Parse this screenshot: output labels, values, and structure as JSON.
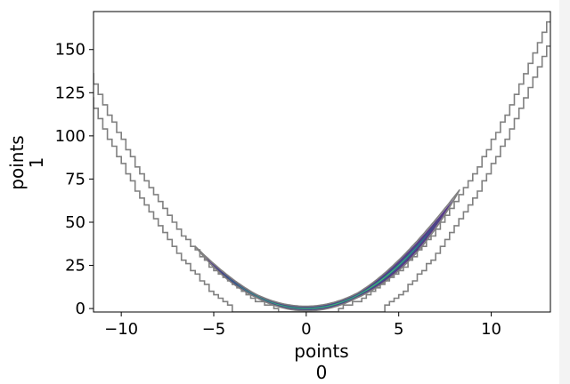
{
  "chart_data": {
    "type": "contour",
    "title": "",
    "xlabel_lines": [
      "points",
      "0"
    ],
    "ylabel_lines": [
      "points",
      "1"
    ],
    "xlim": [
      -11.5,
      13.2
    ],
    "ylim": [
      -2,
      172
    ],
    "xticks": [
      -10,
      -5,
      0,
      5,
      10
    ],
    "xtick_labels": [
      "−10",
      "−5",
      "0",
      "5",
      "10"
    ],
    "yticks": [
      0,
      25,
      50,
      75,
      100,
      125,
      150
    ],
    "ytick_labels": [
      "0",
      "25",
      "50",
      "75",
      "100",
      "125",
      "150"
    ],
    "grid": false,
    "legend": "none",
    "density_contour_color": "#808080",
    "kde_fill_colors": [
      "#46277a",
      "#3b528b",
      "#21918c",
      "#5ec962"
    ],
    "outer_contours": [
      {
        "name": "outer-contour",
        "a": 1.0,
        "offset": -17
      },
      {
        "name": "inner-contour",
        "a": 1.0,
        "offset": -3
      }
    ],
    "density_band": {
      "x_range": [
        -5.6,
        8.0
      ],
      "center": "x^2",
      "relative_halfwidth": 0.16,
      "min_halfwidth": 1.2
    }
  }
}
